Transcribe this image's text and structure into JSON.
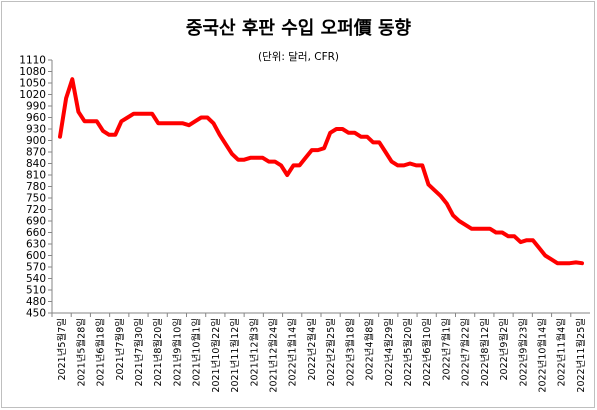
{
  "chart_data": {
    "type": "line",
    "title": "중국산 후판 수입 오퍼價 동향",
    "subtitle": "(단위: 달러, CFR)",
    "xlabel": "",
    "ylabel": "",
    "ylim": [
      450,
      1110
    ],
    "ystep": 30,
    "grid": false,
    "legend": "none",
    "line_color": "#ff0000",
    "x_tick_labels": [
      "2021년5월7일",
      "2021년5월28일",
      "2021년6월18일",
      "2021년7월9일",
      "2021년7월30일",
      "2021년8월20일",
      "2021년9월10일",
      "2021년10월1일",
      "2021년10월22일",
      "2021년11월12일",
      "2021년12월3일",
      "2021년12월24일",
      "2022년1월14일",
      "2022년2월4일",
      "2022년2월25일",
      "2022년3월18일",
      "2022년4월8일",
      "2022년4월29일",
      "2022년5월20일",
      "2022년6월10일",
      "2022년7월1일",
      "2022년7월22일",
      "2022년8월12일",
      "2022년9월2일",
      "2022년9월23일",
      "2022년10월14일",
      "2022년11월4일",
      "2022년11월25일"
    ],
    "values": [
      910,
      1010,
      1060,
      975,
      950,
      950,
      950,
      925,
      915,
      915,
      950,
      960,
      970,
      970,
      970,
      970,
      945,
      945,
      945,
      945,
      945,
      940,
      950,
      960,
      960,
      945,
      915,
      890,
      865,
      850,
      850,
      855,
      855,
      855,
      845,
      845,
      835,
      810,
      835,
      835,
      855,
      875,
      875,
      880,
      920,
      930,
      930,
      920,
      920,
      910,
      910,
      895,
      895,
      870,
      845,
      835,
      835,
      840,
      835,
      835,
      785,
      770,
      755,
      735,
      705,
      690,
      680,
      670,
      670,
      670,
      670,
      660,
      660,
      650,
      650,
      635,
      640,
      640,
      620,
      600,
      590,
      580,
      580,
      580,
      582,
      580
    ]
  }
}
